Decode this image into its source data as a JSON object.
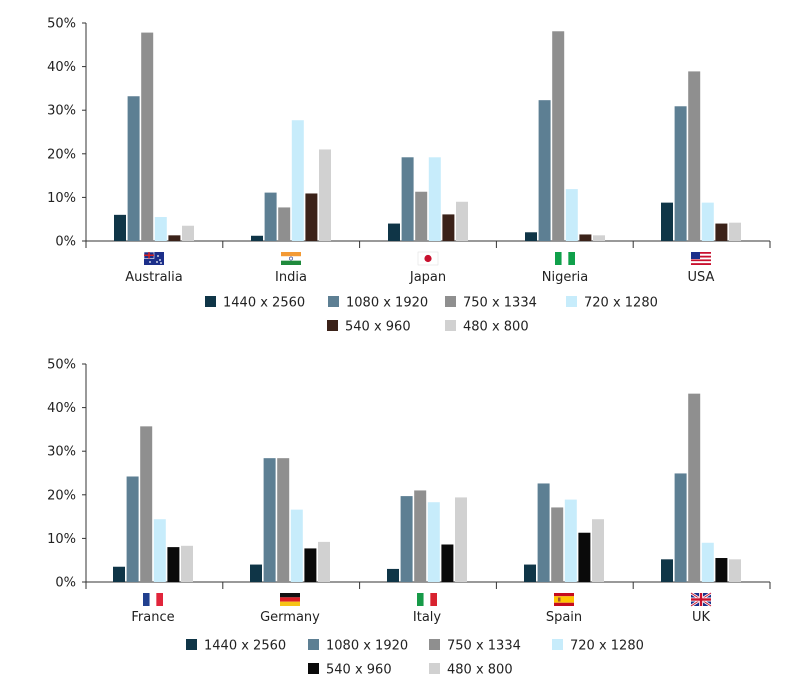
{
  "colors": {
    "1440 x 2560": "#0f3547",
    "1080 x 1920": "#5d7f93",
    "750 x 1334": "#8f8f8f",
    "720 x 1280": "#c7ecfb",
    "540 x 960_top": "#3b2219",
    "540 x 960_bottom": "#0a0a0a",
    "480 x 800": "#d1d1d1"
  },
  "chart_data": [
    {
      "type": "bar",
      "title": "",
      "xlabel": "",
      "ylabel": "",
      "ylim": [
        0,
        50
      ],
      "yticks": [
        "0%",
        "10%",
        "20%",
        "30%",
        "40%",
        "50%"
      ],
      "legend_position": "bottom",
      "categories": [
        "Australia",
        "India",
        "Japan",
        "Nigeria",
        "USA"
      ],
      "flags": [
        "australia-flag-icon",
        "india-flag-icon",
        "japan-flag-icon",
        "nigeria-flag-icon",
        "usa-flag-icon"
      ],
      "series": [
        {
          "name": "1440 x 2560",
          "values": [
            6,
            1.2,
            4,
            2,
            8.8
          ]
        },
        {
          "name": "1080 x 1920",
          "values": [
            33.2,
            11.1,
            19.2,
            32.3,
            30.9
          ]
        },
        {
          "name": "750 x 1334",
          "values": [
            47.8,
            7.7,
            11.3,
            48.1,
            38.9
          ]
        },
        {
          "name": "720 x 1280",
          "values": [
            5.5,
            27.7,
            19.2,
            11.9,
            8.8
          ]
        },
        {
          "name": "540 x 960",
          "values": [
            1.3,
            10.9,
            6.1,
            1.5,
            4
          ]
        },
        {
          "name": "480 x 800",
          "values": [
            3.5,
            21,
            9,
            1.3,
            4.2
          ]
        }
      ]
    },
    {
      "type": "bar",
      "title": "",
      "xlabel": "",
      "ylabel": "",
      "ylim": [
        0,
        50
      ],
      "yticks": [
        "0%",
        "10%",
        "20%",
        "30%",
        "40%",
        "50%"
      ],
      "legend_position": "bottom",
      "categories": [
        "France",
        "Germany",
        "Italy",
        "Spain",
        "UK"
      ],
      "flags": [
        "france-flag-icon",
        "germany-flag-icon",
        "italy-flag-icon",
        "spain-flag-icon",
        "uk-flag-icon"
      ],
      "series": [
        {
          "name": "1440 x 2560",
          "values": [
            3.5,
            4,
            3,
            4,
            5.2
          ]
        },
        {
          "name": "1080 x 1920",
          "values": [
            24.2,
            28.4,
            19.7,
            22.6,
            24.9
          ]
        },
        {
          "name": "750 x 1334",
          "values": [
            35.7,
            28.4,
            21,
            17.1,
            43.2
          ]
        },
        {
          "name": "720 x 1280",
          "values": [
            14.4,
            16.6,
            18.3,
            18.9,
            9
          ]
        },
        {
          "name": "540 x 960",
          "values": [
            8,
            7.7,
            8.6,
            11.3,
            5.5
          ]
        },
        {
          "name": "480 x 800",
          "values": [
            8.3,
            9.2,
            19.4,
            14.4,
            5.2
          ]
        }
      ]
    }
  ]
}
